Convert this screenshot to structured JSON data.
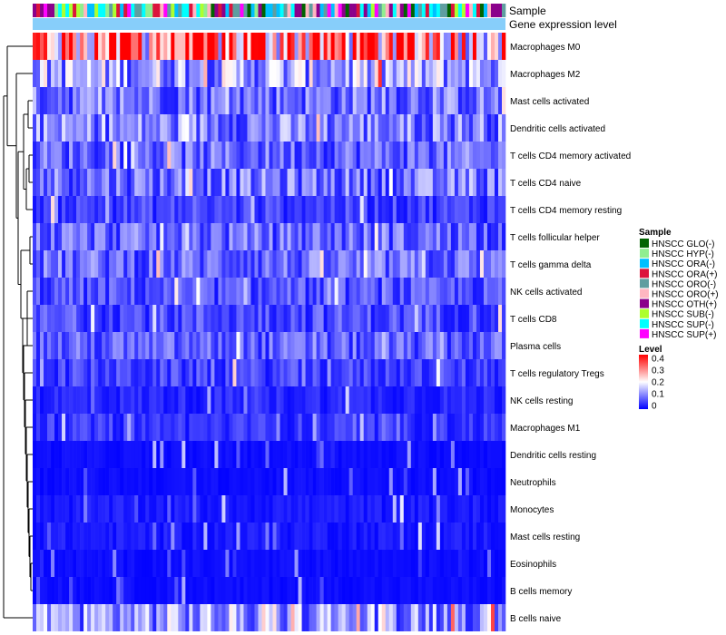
{
  "chart_data": {
    "type": "heatmap",
    "title": "",
    "annotation_tracks": [
      "Sample",
      "Gene expression level"
    ],
    "rows": [
      "Macrophages M0",
      "Macrophages M2",
      "Mast cells activated",
      "Dendritic cells activated",
      "T cells CD4 memory activated",
      "T cells CD4 naive",
      "T cells CD4 memory resting",
      "T cells follicular helper",
      "T cells gamma delta",
      "NK cells activated",
      "T cells CD8",
      "Plasma cells",
      "T cells regulatory  Tregs",
      "NK cells resting",
      "Macrophages M1",
      "Dendritic cells resting",
      "Neutrophils",
      "Monocytes",
      "Mast cells resting",
      "Eosinophils",
      "B cells memory",
      "B cells naive"
    ],
    "row_mean_level": [
      0.3,
      0.13,
      0.09,
      0.1,
      0.08,
      0.09,
      0.05,
      0.08,
      0.08,
      0.06,
      0.06,
      0.07,
      0.05,
      0.03,
      0.04,
      0.01,
      0.01,
      0.02,
      0.02,
      0.01,
      0.01,
      0.12
    ],
    "n_samples": 130,
    "sample_legend": {
      "title": "Sample",
      "items": [
        {
          "label": "HNSCC GLO(-)",
          "color": "#006400"
        },
        {
          "label": "HNSCC HYP(-)",
          "color": "#90EE90"
        },
        {
          "label": "HNSCC ORA(-)",
          "color": "#00BFFF"
        },
        {
          "label": "HNSCC ORA(+)",
          "color": "#DC143C"
        },
        {
          "label": "HNSCC ORO(-)",
          "color": "#5F9EA0"
        },
        {
          "label": "HNSCC ORO(+)",
          "color": "#FFB6C1"
        },
        {
          "label": "HNSCC OTH(+)",
          "color": "#8B008B"
        },
        {
          "label": "HNSCC SUB(-)",
          "color": "#ADFF2F"
        },
        {
          "label": "HNSCC SUP(-)",
          "color": "#00FFFF"
        },
        {
          "label": "HNSCC SUP(+)",
          "color": "#FF00FF"
        }
      ]
    },
    "level_legend": {
      "title": "Level",
      "ticks": [
        "0.4",
        "0.3",
        "0.2",
        "0.1",
        "0"
      ],
      "range": [
        0,
        0.4
      ],
      "colors": {
        "low": "#0000FF",
        "mid": "#FFFFFF",
        "high": "#FF0000"
      }
    },
    "gene_expression_color": "#87CEFA"
  }
}
